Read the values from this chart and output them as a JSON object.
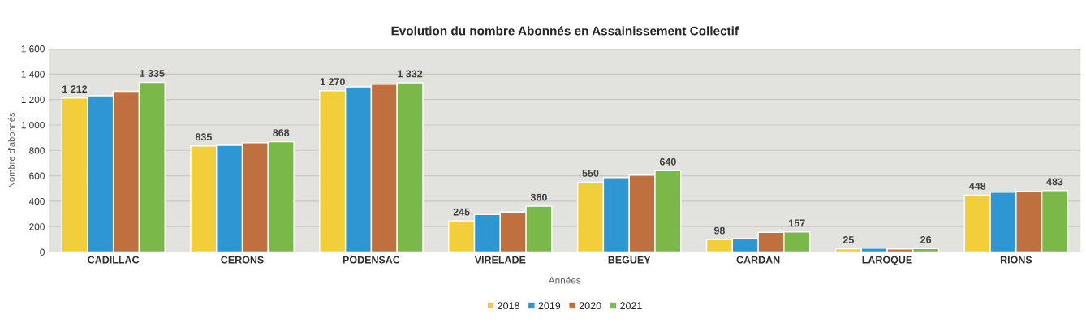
{
  "chart_data": {
    "type": "bar",
    "title": "Evolution du nombre Abonnés en Assainissement Collectif",
    "xlabel": "Années",
    "ylabel": "Nombre d'abonnés",
    "categories": [
      "CADILLAC",
      "CERONS",
      "PODENSAC",
      "VIRELADE",
      "BEGUEY",
      "CARDAN",
      "LAROQUE",
      "RIONS"
    ],
    "series": [
      {
        "name": "2018",
        "color": "#f2cf3a",
        "values": [
          1212,
          835,
          1270,
          245,
          550,
          98,
          25,
          448
        ],
        "value_labels": [
          "1 212",
          "835",
          "1 270",
          "245",
          "550",
          "98",
          "25",
          "448"
        ]
      },
      {
        "name": "2019",
        "color": "#2e96d2",
        "values": [
          1230,
          840,
          1300,
          295,
          585,
          108,
          30,
          470
        ]
      },
      {
        "name": "2020",
        "color": "#c0703e",
        "values": [
          1265,
          860,
          1320,
          315,
          605,
          155,
          24,
          478
        ]
      },
      {
        "name": "2021",
        "color": "#7ab84a",
        "values": [
          1335,
          868,
          1332,
          360,
          640,
          157,
          26,
          483
        ],
        "value_labels": [
          "1 335",
          "868",
          "1 332",
          "360",
          "640",
          "157",
          "26",
          "483"
        ]
      }
    ],
    "ylim": [
      0,
      1600
    ],
    "yticks": [
      0,
      200,
      400,
      600,
      800,
      {
        "value": 1000,
        "label": "1 000"
      },
      {
        "value": 1200,
        "label": "1 200"
      },
      {
        "value": 1400,
        "label": "1 400"
      },
      {
        "value": 1600,
        "label": "1 600"
      }
    ],
    "grid": "y",
    "legend": "bottom"
  }
}
